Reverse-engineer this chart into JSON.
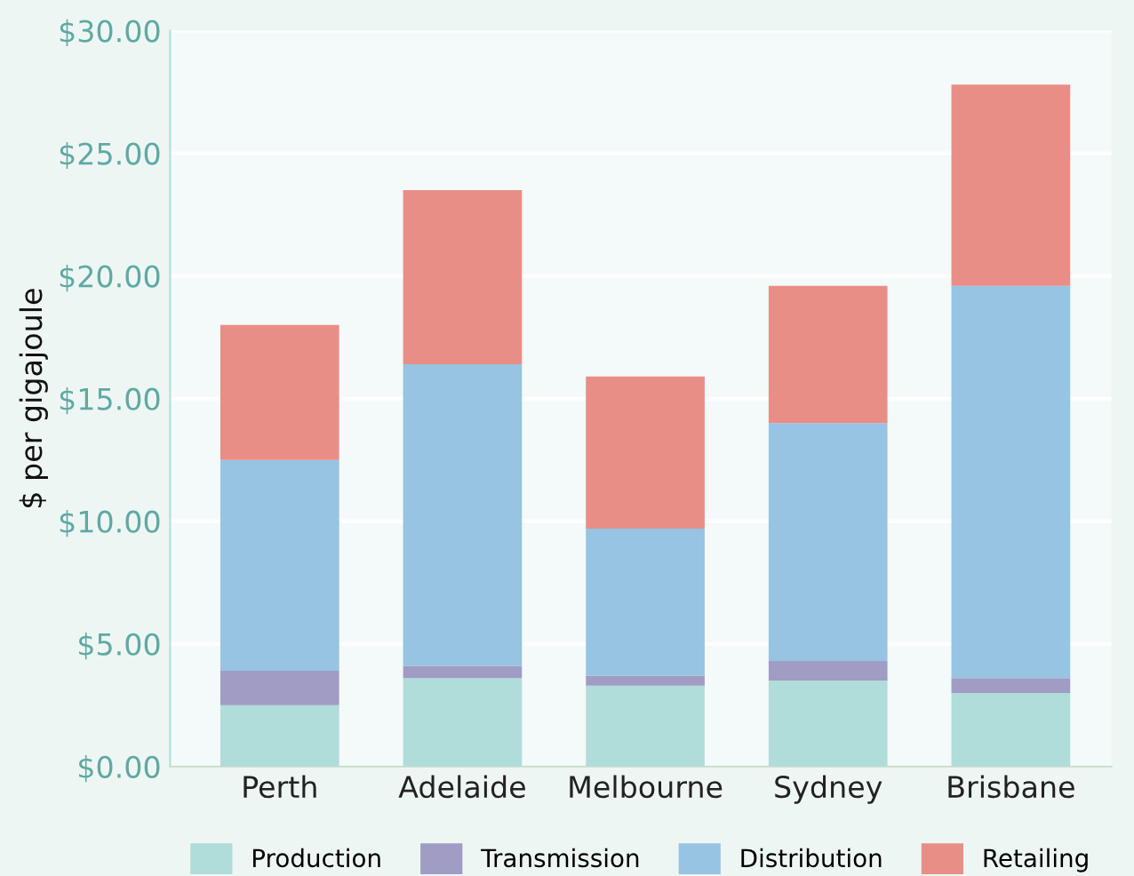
{
  "chart_data": {
    "type": "bar",
    "stacked": true,
    "ylabel": "$ per gigajoule",
    "categories": [
      "Perth",
      "Adelaide",
      "Melbourne",
      "Sydney",
      "Brisbane"
    ],
    "series": [
      {
        "name": "Production",
        "color": "#b0dcda",
        "values": [
          2.5,
          3.6,
          3.3,
          3.5,
          3.0
        ]
      },
      {
        "name": "Transmission",
        "color": "#a19cc3",
        "values": [
          1.4,
          0.5,
          0.4,
          0.8,
          0.6
        ]
      },
      {
        "name": "Distribution",
        "color": "#96c4e2",
        "values": [
          8.6,
          12.3,
          6.0,
          9.7,
          16.0
        ]
      },
      {
        "name": "Retailing",
        "color": "#e98e86",
        "values": [
          5.5,
          7.1,
          6.2,
          5.6,
          8.2
        ]
      }
    ],
    "ylim": [
      0,
      30
    ],
    "yticks": [
      {
        "value": 0,
        "label": "$0.00"
      },
      {
        "value": 5,
        "label": "$5.00"
      },
      {
        "value": 10,
        "label": "$10.00"
      },
      {
        "value": 15,
        "label": "$15.00"
      },
      {
        "value": 20,
        "label": "$20.00"
      },
      {
        "value": 25,
        "label": "$25.00"
      },
      {
        "value": 30,
        "label": "$30.00"
      }
    ],
    "grid": "y",
    "legend": "bottom"
  }
}
